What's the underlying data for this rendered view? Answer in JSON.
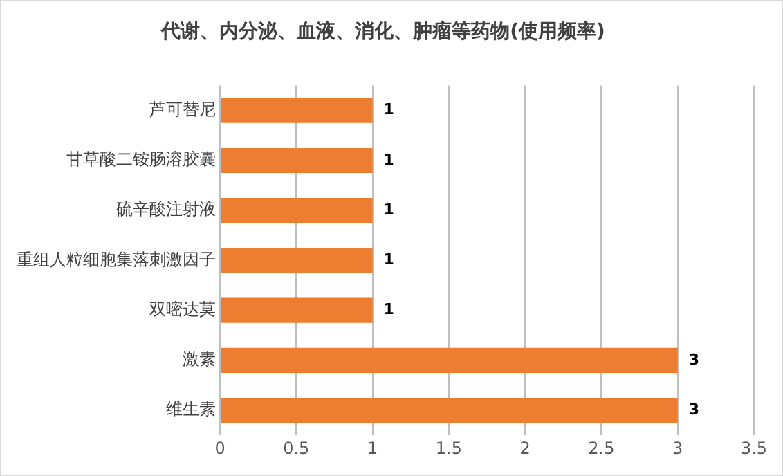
{
  "chart_data": {
    "type": "bar",
    "orientation": "horizontal",
    "title": "代谢、内分泌、血液、消化、肿瘤等药物(使用频率)",
    "categories": [
      "芦可替尼",
      "甘草酸二铵肠溶胶囊",
      "硫辛酸注射液",
      "重组人粒细胞集落刺激因子",
      "双嘧达莫",
      "激素",
      "维生素"
    ],
    "values": [
      1,
      1,
      1,
      1,
      1,
      3,
      3
    ],
    "color": "#ed7d31",
    "xlim": [
      0,
      3.5
    ],
    "xticks": [
      0,
      0.5,
      1,
      1.5,
      2,
      2.5,
      3,
      3.5
    ],
    "grid": "x",
    "data_labels": true,
    "legend": false
  }
}
